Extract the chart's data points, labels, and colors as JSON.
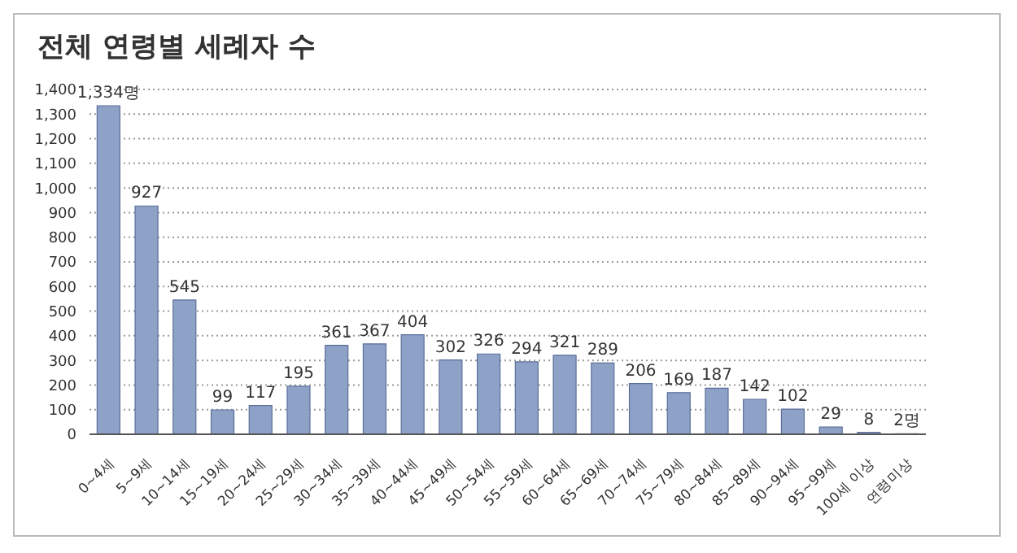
{
  "chart_data": {
    "type": "bar",
    "title": "전체 연령별 세례자 수",
    "categories": [
      "0~4세",
      "5~9세",
      "10~14세",
      "15~19세",
      "20~24세",
      "25~29세",
      "30~34세",
      "35~39세",
      "40~44세",
      "45~49세",
      "50~54세",
      "55~59세",
      "60~64세",
      "65~69세",
      "70~74세",
      "75~79세",
      "80~84세",
      "85~89세",
      "90~94세",
      "95~99세",
      "100세 이상",
      "연령미상"
    ],
    "values": [
      1334,
      927,
      545,
      99,
      117,
      195,
      361,
      367,
      404,
      302,
      326,
      294,
      321,
      289,
      206,
      169,
      187,
      142,
      102,
      29,
      8,
      2
    ],
    "value_labels": [
      "1,334명",
      "927",
      "545",
      "99",
      "117",
      "195",
      "361",
      "367",
      "404",
      "302",
      "326",
      "294",
      "321",
      "289",
      "206",
      "169",
      "187",
      "142",
      "102",
      "29",
      "8",
      "2명"
    ],
    "color": "#8ea2c8",
    "ylim": [
      0,
      1400
    ],
    "yticks": [
      0,
      100,
      200,
      300,
      400,
      500,
      600,
      700,
      800,
      900,
      {
        "value": 1000,
        "label": "1,000"
      },
      {
        "value": 1100,
        "label": "1,100"
      },
      {
        "value": 1200,
        "label": "1,200"
      },
      {
        "value": 1300,
        "label": "1,300"
      },
      {
        "value": 1400,
        "label": "1,400"
      }
    ],
    "grid": "y"
  }
}
